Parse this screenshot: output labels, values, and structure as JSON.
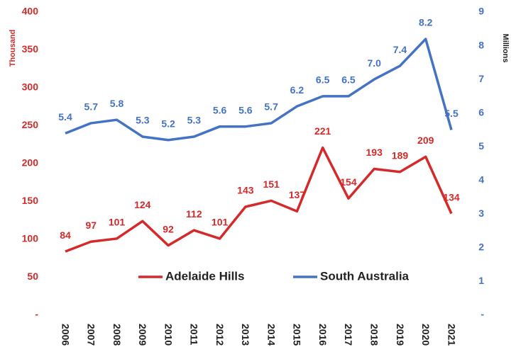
{
  "chart_data": {
    "type": "line",
    "y_label": "Thousand",
    "y2_label": "Millions",
    "categories": [
      "2006",
      "2007",
      "2008",
      "2009",
      "2010",
      "2011",
      "2012",
      "2013",
      "2014",
      "2015",
      "2016",
      "2017",
      "2018",
      "2019",
      "2020",
      "2021"
    ],
    "series": [
      {
        "name": "Adelaide Hills",
        "color": "#d42a2a",
        "axis": "y",
        "values": [
          84,
          97,
          101,
          124,
          92,
          112,
          101,
          143,
          151,
          137,
          221,
          154,
          193,
          189,
          209,
          134
        ]
      },
      {
        "name": "South Australia",
        "color": "#4472c4",
        "axis": "y2",
        "values": [
          5.4,
          5.7,
          5.8,
          5.3,
          5.2,
          5.3,
          5.6,
          5.6,
          5.7,
          6.2,
          6.5,
          6.5,
          7.0,
          7.4,
          8.2,
          5.5
        ],
        "value_labels": [
          "5.4",
          "5.7",
          "5.8",
          "5.3",
          "5.2",
          "5.3",
          "5.6",
          "5.6",
          "5.7",
          "6.2",
          "6.5",
          "6.5",
          "7.0",
          "7.4",
          "8.2",
          "5.5"
        ]
      }
    ],
    "ylim": [
      0,
      400
    ],
    "yticks": [
      {
        "value": 0,
        "label": "-"
      },
      50,
      100,
      150,
      200,
      250,
      300,
      350,
      400
    ],
    "y2lim": [
      0,
      9
    ],
    "y2ticks": [
      {
        "value": 0,
        "label": "-"
      },
      1,
      2,
      3,
      4,
      5,
      6,
      7,
      8,
      9
    ],
    "legend": "bottom",
    "grid": false
  }
}
